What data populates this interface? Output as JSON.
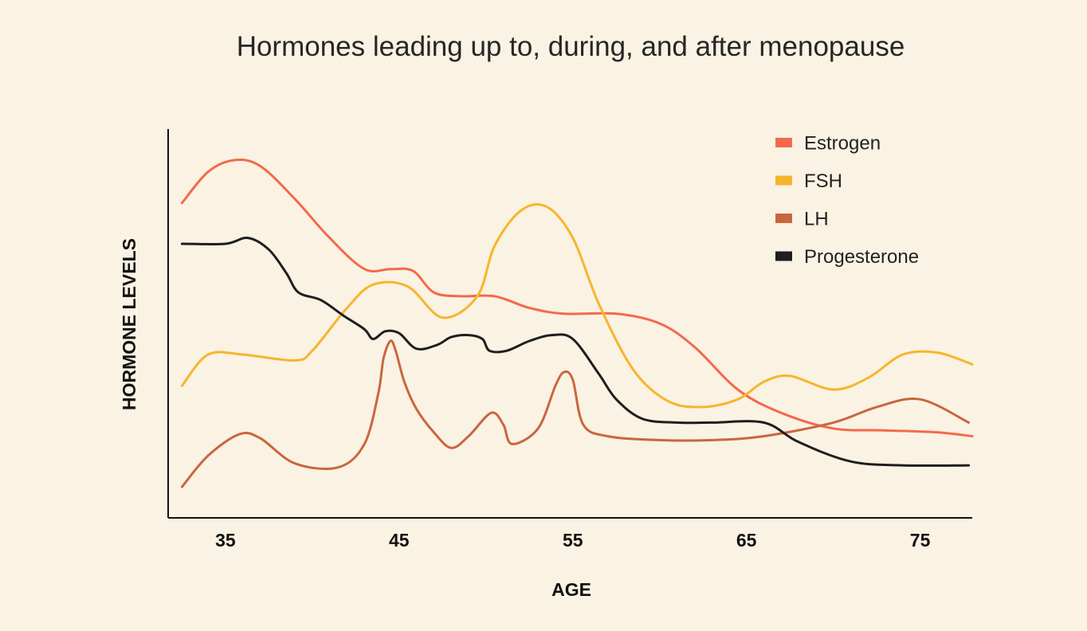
{
  "chart_data": {
    "type": "line",
    "title": "Hormones leading up to, during, and after menopause",
    "xlabel": "AGE",
    "ylabel": "HORMONE LEVELS",
    "xlim": [
      31.7,
      78
    ],
    "ylim": [
      0,
      100
    ],
    "xticks": [
      35,
      45,
      55,
      65,
      75
    ],
    "xtick_labels": [
      "35",
      "45",
      "55",
      "65",
      "75"
    ],
    "grid": false,
    "legend_position": "top-right",
    "series": [
      {
        "name": "Estrogen",
        "color": "#F26A4B",
        "x": [
          32.5,
          34,
          35.5,
          37,
          39,
          41,
          43,
          44.5,
          45.8,
          47,
          48.5,
          50.5,
          52.5,
          54.5,
          57.5,
          60,
          62,
          64.5,
          67,
          70,
          73,
          76,
          78
        ],
        "y": [
          81,
          89,
          92,
          90.5,
          82,
          72,
          64,
          64,
          63.5,
          58,
          57,
          57,
          54,
          52.5,
          52.5,
          50,
          44,
          33,
          27,
          23,
          22.5,
          22,
          21
        ]
      },
      {
        "name": "FSH",
        "color": "#F7B52C",
        "x": [
          32.5,
          34,
          36,
          39,
          40,
          42,
          43.5,
          45.5,
          47.5,
          49.5,
          50.5,
          52,
          53.5,
          55,
          56.5,
          58.5,
          60.5,
          62.5,
          64.5,
          66,
          67.5,
          70,
          72,
          74,
          76,
          78
        ],
        "y": [
          34,
          42,
          42,
          40.5,
          43,
          54,
          60,
          59.5,
          51.5,
          57,
          70,
          79,
          80,
          72,
          55,
          38,
          30,
          28.5,
          30.5,
          35,
          36.5,
          33,
          36,
          42,
          42.5,
          39.5
        ]
      },
      {
        "name": "LH",
        "color": "#C8673E",
        "x": [
          32.5,
          34,
          35.8,
          37,
          39,
          41.5,
          43,
          43.8,
          44.1,
          44.5,
          44.8,
          45.3,
          46,
          47,
          48,
          49,
          50.3,
          51,
          51.5,
          53,
          54,
          54.5,
          55,
          55.6,
          57,
          60,
          63,
          66,
          70,
          72.5,
          75,
          77.8
        ],
        "y": [
          8,
          16,
          21.5,
          20.5,
          14,
          13,
          19,
          32,
          41,
          45.5,
          43,
          35,
          28,
          22,
          18,
          21,
          27,
          24,
          19,
          23,
          34,
          37.5,
          35.5,
          24,
          21,
          20,
          20,
          21,
          24.5,
          28.5,
          30.5,
          24.5
        ]
      },
      {
        "name": "Progesterone",
        "color": "#1E1E1E",
        "x": [
          32.5,
          35,
          36.3,
          37.5,
          38.5,
          39.2,
          40.5,
          41.8,
          43,
          43.5,
          44.2,
          45,
          46,
          47.2,
          48,
          49,
          49.8,
          50.2,
          51.2,
          52.5,
          53.8,
          55,
          56.5,
          57.5,
          59,
          61,
          63,
          66,
          68,
          71,
          74,
          77.8
        ],
        "y": [
          70.5,
          70.5,
          72,
          69,
          63,
          58,
          56,
          52,
          48.5,
          46,
          48,
          47.5,
          43.5,
          44.5,
          46.5,
          47,
          46,
          43,
          43,
          45.5,
          47,
          46,
          37,
          30.5,
          25.5,
          24.5,
          24.5,
          24.5,
          19.5,
          14.5,
          13.5,
          13.5
        ]
      }
    ]
  }
}
